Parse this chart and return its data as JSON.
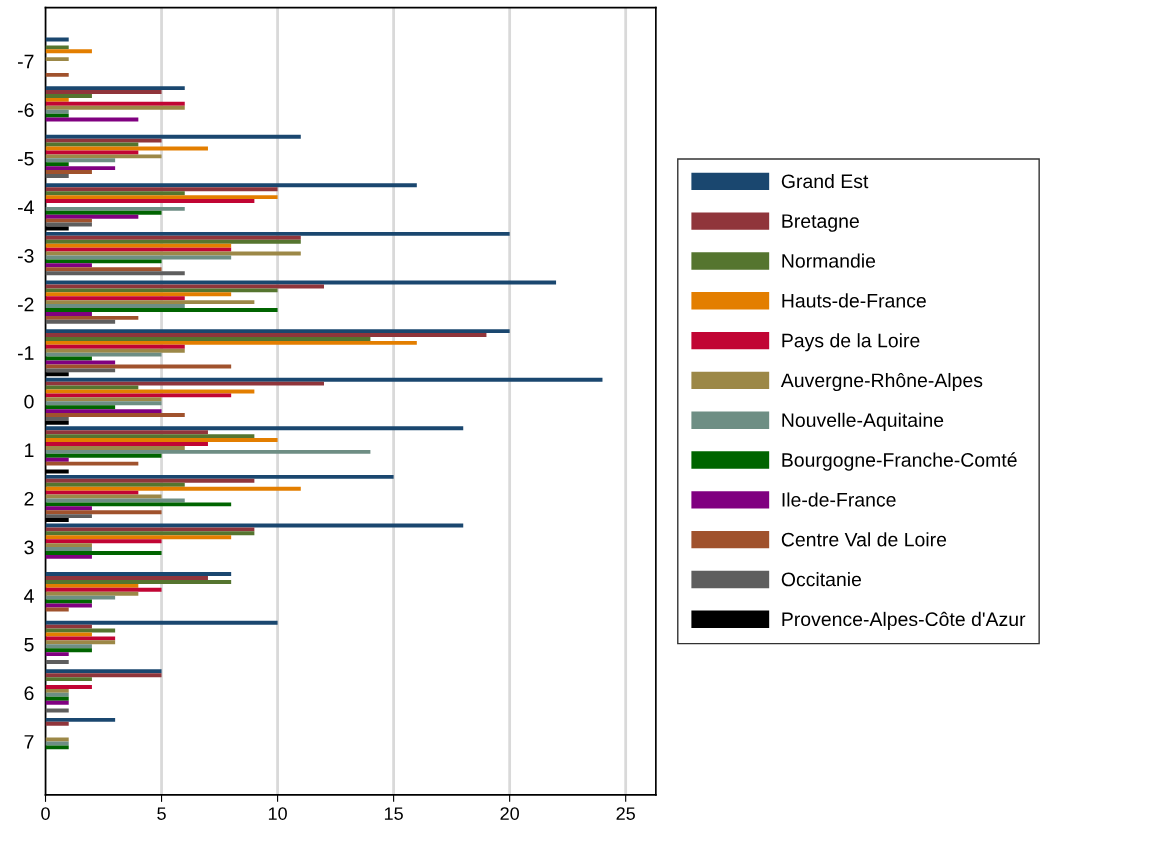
{
  "chart_data": {
    "type": "bar",
    "orientation": "horizontal",
    "categories": [
      "-7",
      "-6",
      "-5",
      "-4",
      "-3",
      "-2",
      "-1",
      "0",
      "1",
      "2",
      "3",
      "4",
      "5",
      "6",
      "7"
    ],
    "series": [
      {
        "name": "Grand Est",
        "color": "#1a476f",
        "values": [
          1,
          6,
          11,
          16,
          20,
          22,
          20,
          24,
          18,
          15,
          18,
          8,
          10,
          5,
          3
        ]
      },
      {
        "name": "Bretagne",
        "color": "#90353b",
        "values": [
          0,
          5,
          5,
          10,
          11,
          12,
          19,
          12,
          7,
          9,
          9,
          7,
          2,
          5,
          1
        ]
      },
      {
        "name": "Normandie",
        "color": "#55752f",
        "values": [
          1,
          2,
          4,
          6,
          11,
          10,
          14,
          4,
          9,
          6,
          9,
          8,
          3,
          2,
          0
        ]
      },
      {
        "name": "Hauts-de-France",
        "color": "#e37e00",
        "values": [
          2,
          1,
          7,
          10,
          8,
          8,
          16,
          9,
          10,
          11,
          8,
          4,
          2,
          0,
          0
        ]
      },
      {
        "name": "Pays de la Loire",
        "color": "#c10534",
        "values": [
          0,
          6,
          4,
          9,
          8,
          6,
          6,
          8,
          7,
          4,
          5,
          5,
          3,
          2,
          0
        ]
      },
      {
        "name": "Auvergne-Rhône-Alpes",
        "color": "#9c8847",
        "values": [
          1,
          6,
          5,
          0,
          11,
          9,
          6,
          5,
          6,
          5,
          2,
          4,
          3,
          1,
          1
        ]
      },
      {
        "name": "Nouvelle-Aquitaine",
        "color": "#6e8e84",
        "values": [
          0,
          1,
          3,
          6,
          8,
          6,
          5,
          5,
          14,
          6,
          2,
          3,
          2,
          1,
          1
        ]
      },
      {
        "name": "Bourgogne-Franche-Comté",
        "color": "#006400",
        "values": [
          0,
          1,
          1,
          5,
          5,
          10,
          2,
          3,
          5,
          8,
          5,
          2,
          2,
          1,
          1
        ]
      },
      {
        "name": "Ile-de-France",
        "color": "#800080",
        "values": [
          0,
          4,
          3,
          4,
          2,
          2,
          3,
          5,
          1,
          2,
          2,
          2,
          1,
          1,
          0
        ]
      },
      {
        "name": "Centre Val de Loire",
        "color": "#a0522d",
        "values": [
          1,
          0,
          2,
          2,
          5,
          4,
          8,
          6,
          4,
          5,
          0,
          1,
          0,
          0,
          0
        ]
      },
      {
        "name": "Occitanie",
        "color": "#5e5e5e",
        "values": [
          0,
          0,
          1,
          2,
          6,
          3,
          3,
          1,
          0,
          2,
          0,
          0,
          1,
          1,
          0
        ]
      },
      {
        "name": "Provence-Alpes-Côte d'Azur",
        "color": "#000000",
        "values": [
          0,
          0,
          0,
          1,
          0,
          0,
          1,
          1,
          1,
          1,
          0,
          0,
          0,
          0,
          0
        ]
      }
    ],
    "xlim": [
      0,
      26.3
    ],
    "xticks": [
      0,
      5,
      10,
      15,
      20,
      25
    ],
    "grid": "x",
    "legend": "right"
  }
}
